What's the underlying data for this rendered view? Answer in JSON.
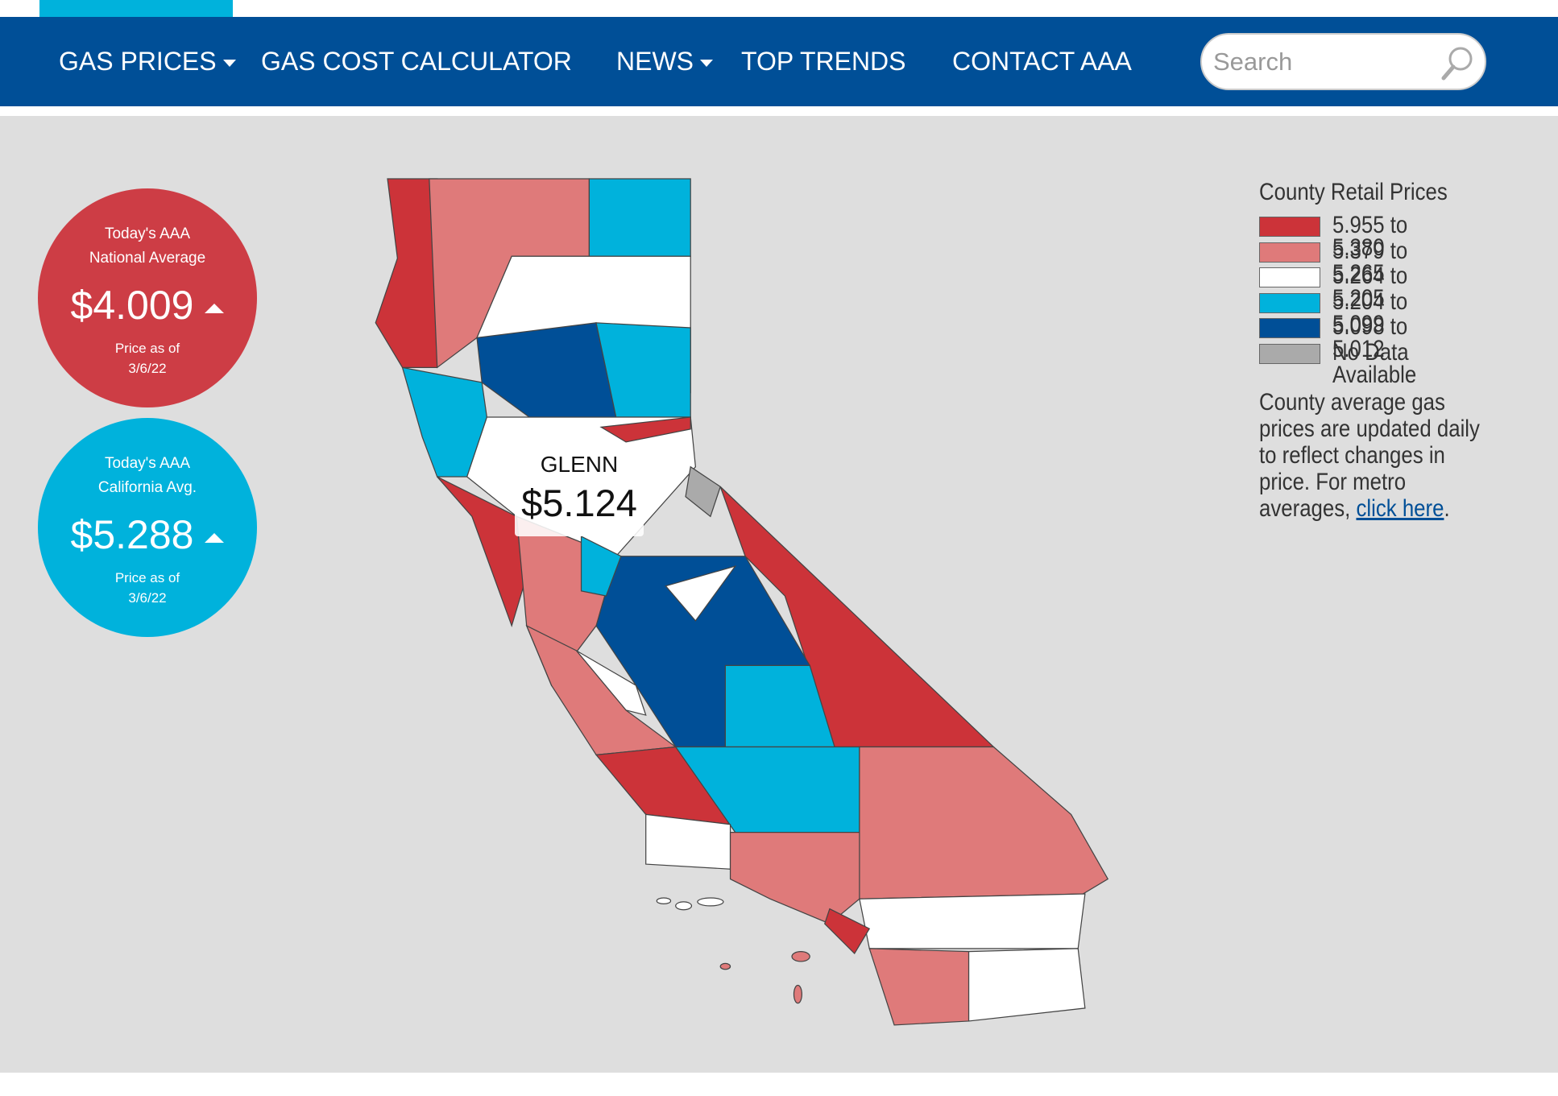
{
  "nav": {
    "items": [
      "GAS PRICES",
      "GAS COST CALCULATOR",
      "NEWS",
      "TOP TRENDS",
      "CONTACT AAA"
    ],
    "search_placeholder": "Search"
  },
  "national": {
    "line1": "Today's AAA",
    "line2": "National Average",
    "price": "$4.009",
    "date_label": "Price as of",
    "date": "3/6/22"
  },
  "california": {
    "line1": "Today's AAA",
    "line2": "California Avg.",
    "price": "$5.288",
    "date_label": "Price as of",
    "date": "3/6/22"
  },
  "tooltip": {
    "county": "GLENN",
    "price": "$5.124"
  },
  "legend": {
    "title": "County Retail Prices",
    "items": [
      {
        "label": "5.955 to 5.380",
        "color": "#cc3339"
      },
      {
        "label": "5.379 to 5.265",
        "color": "#df7a7a"
      },
      {
        "label": "5.264 to 5.205",
        "color": "#ffffff"
      },
      {
        "label": "5.204 to 5.099",
        "color": "#00b2dc"
      },
      {
        "label": "5.098 to 5.012",
        "color": "#004f97"
      },
      {
        "label": "No Data Available",
        "color": "#aaaaaa"
      }
    ]
  },
  "note": {
    "text": "County average gas prices are updated daily to reflect changes in price. For metro averages, ",
    "link": "click here",
    "end": "."
  }
}
